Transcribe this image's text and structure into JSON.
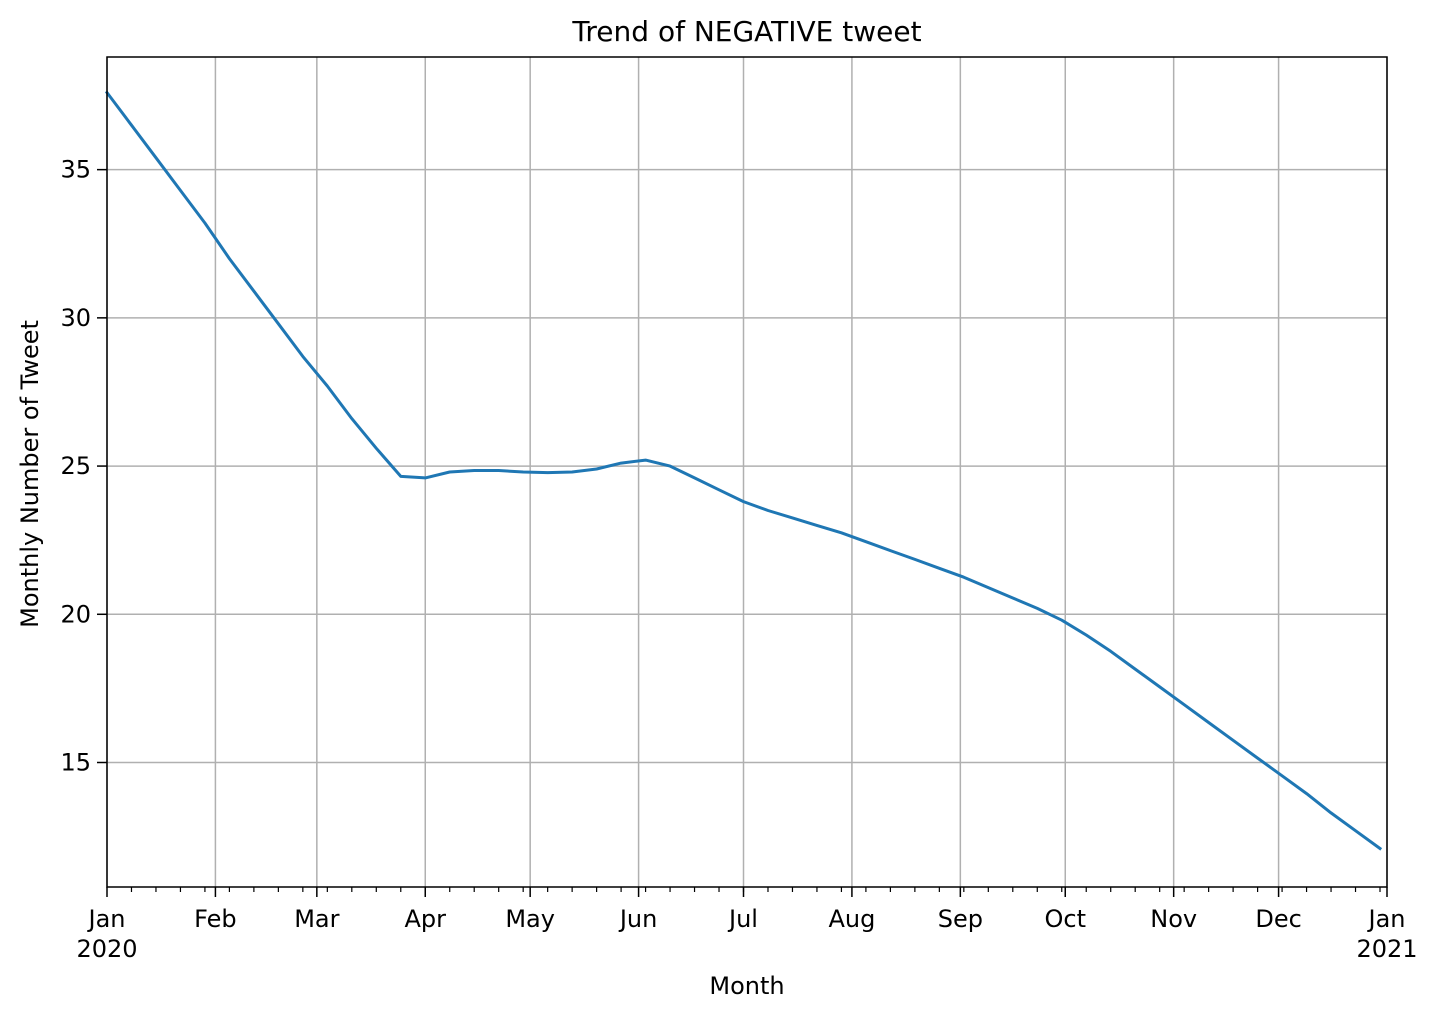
{
  "chart_data": {
    "type": "line",
    "title": "Trend of NEGATIVE tweet",
    "xlabel": "Month",
    "ylabel": "Monthly Number of Tweet",
    "x_axis": {
      "type": "date",
      "range": [
        "2020-01-01",
        "2021-01-01"
      ],
      "major_ticks": [
        {
          "date": "2020-01-01",
          "label": "Jan",
          "year": "2020"
        },
        {
          "date": "2020-02-01",
          "label": "Feb"
        },
        {
          "date": "2020-03-01",
          "label": "Mar"
        },
        {
          "date": "2020-04-01",
          "label": "Apr"
        },
        {
          "date": "2020-05-01",
          "label": "May"
        },
        {
          "date": "2020-06-01",
          "label": "Jun"
        },
        {
          "date": "2020-07-01",
          "label": "Jul"
        },
        {
          "date": "2020-08-01",
          "label": "Aug"
        },
        {
          "date": "2020-09-01",
          "label": "Sep"
        },
        {
          "date": "2020-10-01",
          "label": "Oct"
        },
        {
          "date": "2020-11-01",
          "label": "Nov"
        },
        {
          "date": "2020-12-01",
          "label": "Dec"
        },
        {
          "date": "2021-01-01",
          "label": "Jan",
          "year": "2021"
        }
      ],
      "minor_ticks": "weekly"
    },
    "y_axis": {
      "range": [
        10.8,
        38.8
      ],
      "ticks": [
        15,
        20,
        25,
        30,
        35
      ]
    },
    "grid": true,
    "colors": {
      "line": "#1f77b4",
      "grid": "#b0b0b0",
      "axis": "#000000"
    },
    "series": [
      {
        "x": [
          "2020-01-01",
          "2020-01-08",
          "2020-01-15",
          "2020-01-22",
          "2020-01-29",
          "2020-02-05",
          "2020-02-12",
          "2020-02-19",
          "2020-02-26",
          "2020-03-04",
          "2020-03-11",
          "2020-03-18",
          "2020-03-25",
          "2020-04-01",
          "2020-04-08",
          "2020-04-15",
          "2020-04-22",
          "2020-04-29",
          "2020-05-06",
          "2020-05-13",
          "2020-05-20",
          "2020-05-27",
          "2020-06-03",
          "2020-06-10",
          "2020-06-17",
          "2020-06-24",
          "2020-07-01",
          "2020-07-08",
          "2020-07-15",
          "2020-07-22",
          "2020-07-29",
          "2020-08-05",
          "2020-08-12",
          "2020-08-19",
          "2020-08-26",
          "2020-09-02",
          "2020-09-09",
          "2020-09-16",
          "2020-09-23",
          "2020-09-30",
          "2020-10-07",
          "2020-10-14",
          "2020-10-21",
          "2020-10-28",
          "2020-11-04",
          "2020-11-11",
          "2020-11-18",
          "2020-11-25",
          "2020-12-02",
          "2020-12-09",
          "2020-12-16",
          "2020-12-23",
          "2020-12-30"
        ],
        "values": [
          37.6,
          36.5,
          35.4,
          34.3,
          33.2,
          32.0,
          30.9,
          29.8,
          28.7,
          27.7,
          26.6,
          25.6,
          24.65,
          24.6,
          24.8,
          24.85,
          24.85,
          24.8,
          24.78,
          24.8,
          24.9,
          25.1,
          25.2,
          25.0,
          24.6,
          24.2,
          23.8,
          23.5,
          23.25,
          23.0,
          22.75,
          22.45,
          22.15,
          21.85,
          21.55,
          21.25,
          20.9,
          20.55,
          20.2,
          19.8,
          19.3,
          18.75,
          18.15,
          17.55,
          16.95,
          16.35,
          15.75,
          15.15,
          14.55,
          13.95,
          13.3,
          12.7,
          12.1
        ]
      }
    ]
  }
}
